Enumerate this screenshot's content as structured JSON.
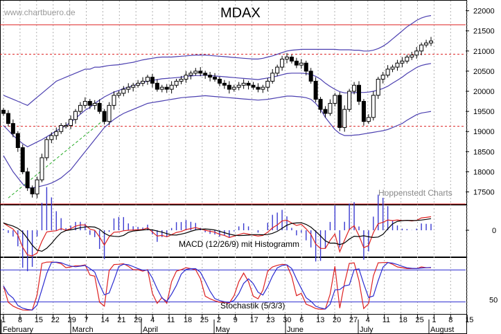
{
  "chart_data": [
    {
      "type": "candlestick",
      "title": "MDAX",
      "watermark": "www.chartbuero.de",
      "source_label": "Hoppenstedt Charts",
      "y_ticks": [
        17500,
        18000,
        18500,
        19000,
        19500,
        20000,
        20500,
        21000,
        21500,
        22000
      ],
      "ylim": [
        17200,
        22250
      ],
      "resistance_lines": [
        {
          "value": 21650,
          "style": "solid",
          "color": "#dd2020"
        },
        {
          "value": 20920,
          "style": "dashed",
          "color": "#dd2020"
        },
        {
          "value": 19130,
          "style": "dashed",
          "color": "#dd2020"
        }
      ],
      "trend_line": {
        "from": [
          1,
          17350
        ],
        "to": [
          21,
          19300
        ],
        "color": "#22aa22"
      },
      "closes": [
        19450,
        19200,
        18950,
        18600,
        18000,
        17600,
        17450,
        17800,
        18350,
        18800,
        18900,
        19000,
        19150,
        19150,
        19300,
        19500,
        19650,
        19750,
        19650,
        19700,
        19500,
        19250,
        19650,
        19900,
        19950,
        20050,
        20100,
        20150,
        20200,
        20250,
        20350,
        20200,
        20050,
        20100,
        20050,
        20150,
        20250,
        20300,
        20400,
        20450,
        20500,
        20450,
        20400,
        20350,
        20300,
        20200,
        20150,
        20050,
        20100,
        20150,
        20200,
        20150,
        20100,
        20050,
        20100,
        20250,
        20450,
        20600,
        20800,
        20850,
        20750,
        20650,
        20700,
        20500,
        20250,
        19800,
        19550,
        19450,
        19700,
        19900,
        19100,
        19550,
        20000,
        20150,
        19750,
        19250,
        19350,
        19900,
        20300,
        20400,
        20550,
        20600,
        20700,
        20750,
        20850,
        20900,
        21000,
        21150,
        21200,
        21250
      ],
      "bollinger_upper": [
        19900,
        19850,
        19800,
        19750,
        19700,
        19650,
        19750,
        19850,
        19950,
        20050,
        20150,
        20250,
        20300,
        20350,
        20400,
        20450,
        20500,
        20550,
        20550,
        20600,
        20600,
        20620,
        20640,
        20650,
        20660,
        20680,
        20700,
        20720,
        20750,
        20780,
        20800,
        20820,
        20840,
        20850,
        20850,
        20850,
        20860,
        20870,
        20880,
        20890,
        20900,
        20900,
        20900,
        20890,
        20880,
        20870,
        20860,
        20850,
        20840,
        20830,
        20820,
        20810,
        20800,
        20800,
        20820,
        20850,
        20880,
        20920,
        20960,
        21000,
        21020,
        21030,
        21040,
        21040,
        21040,
        21040,
        21040,
        21040,
        21040,
        21040,
        21030,
        21030,
        21030,
        21020,
        21020,
        21000,
        21000,
        21020,
        21060,
        21120,
        21200,
        21300,
        21400,
        21500,
        21600,
        21680,
        21760,
        21820,
        21860,
        21880
      ],
      "bollinger_lower": [
        18400,
        18200,
        18000,
        17850,
        17700,
        17600,
        17600,
        17620,
        17650,
        17680,
        17720,
        17780,
        17850,
        17950,
        18050,
        18200,
        18350,
        18500,
        18650,
        18800,
        18950,
        19100,
        19200,
        19300,
        19380,
        19450,
        19500,
        19550,
        19600,
        19650,
        19700,
        19720,
        19740,
        19760,
        19780,
        19800,
        19820,
        19840,
        19850,
        19860,
        19870,
        19880,
        19890,
        19880,
        19870,
        19860,
        19850,
        19840,
        19830,
        19820,
        19810,
        19800,
        19790,
        19780,
        19790,
        19800,
        19820,
        19840,
        19860,
        19880,
        19880,
        19870,
        19860,
        19840,
        19800,
        19700,
        19550,
        19350,
        19200,
        19050,
        18950,
        18900,
        18900,
        18910,
        18920,
        18940,
        18960,
        18980,
        19000,
        19020,
        19050,
        19100,
        19150,
        19200,
        19280,
        19350,
        19420,
        19460,
        19480,
        19500
      ],
      "bollinger_mid": [
        19150,
        19030,
        18900,
        18800,
        18700,
        18620,
        18680,
        18740,
        18800,
        18870,
        18940,
        19020,
        19080,
        19150,
        19230,
        19330,
        19430,
        19530,
        19600,
        19700,
        19780,
        19860,
        19920,
        19980,
        20020,
        20070,
        20100,
        20140,
        20180,
        20220,
        20250,
        20270,
        20290,
        20310,
        20320,
        20330,
        20340,
        20350,
        20370,
        20380,
        20390,
        20390,
        20400,
        20390,
        20380,
        20370,
        20360,
        20350,
        20340,
        20330,
        20320,
        20310,
        20300,
        20290,
        20310,
        20330,
        20350,
        20380,
        20410,
        20440,
        20450,
        20450,
        20450,
        20440,
        20420,
        20370,
        20300,
        20200,
        20120,
        20050,
        19990,
        19960,
        19960,
        19965,
        19970,
        19970,
        19980,
        20000,
        20030,
        20070,
        20125,
        20200,
        20275,
        20350,
        20440,
        20515,
        20590,
        20640,
        20670,
        20690
      ],
      "x_ticks": [
        "1",
        "8",
        "15",
        "22",
        "29",
        "7",
        "14",
        "21",
        "29",
        "4",
        "11",
        "18",
        "25",
        "2",
        "9",
        "17",
        "23",
        "30",
        "6",
        "13",
        "20",
        "27",
        "4",
        "11",
        "18",
        "25",
        "1",
        "8",
        "15"
      ],
      "months": [
        "February",
        "March",
        "April",
        "May",
        "June",
        "July",
        "August"
      ]
    },
    {
      "type": "line",
      "title": "MACD (12/26/9) mit Histogramm",
      "y_ticks": [
        0
      ],
      "series": []
    },
    {
      "type": "line",
      "title": "Stochastik (5/3/3)",
      "y_ticks": [
        50
      ],
      "reference_lines": [
        80,
        20
      ],
      "series": []
    }
  ]
}
